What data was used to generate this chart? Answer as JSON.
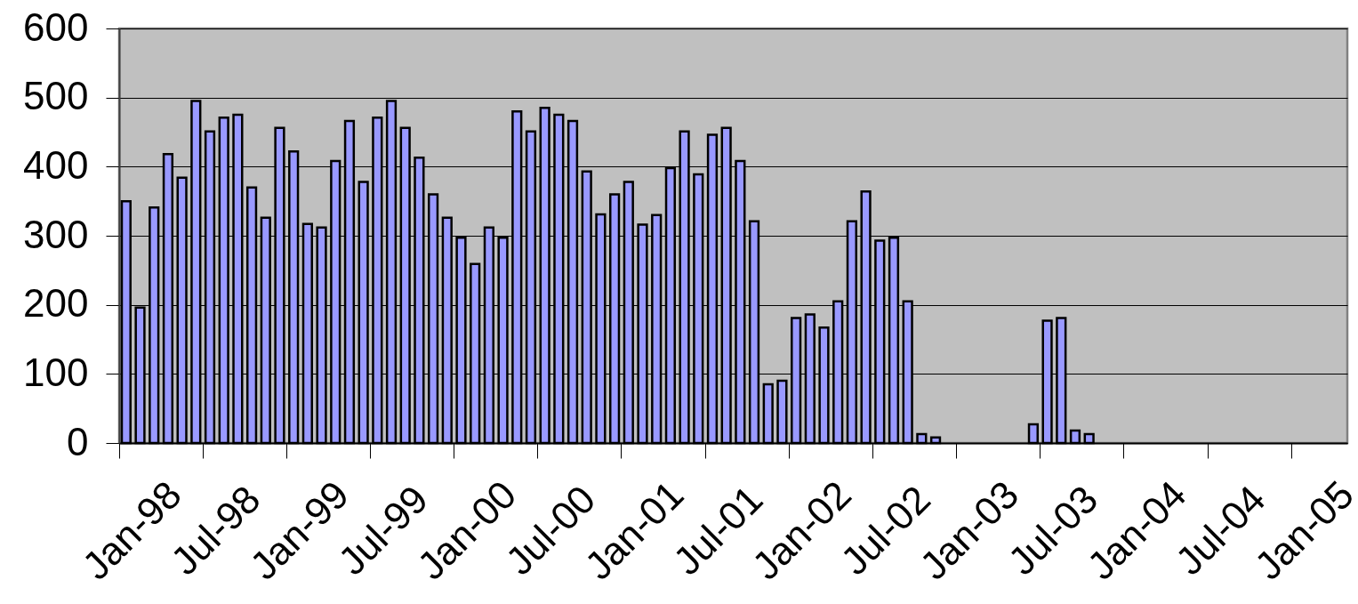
{
  "chart_data": {
    "type": "bar",
    "categories": [
      "Jan-98",
      null,
      null,
      null,
      null,
      null,
      "Jul-98",
      null,
      null,
      null,
      null,
      null,
      "Jan-99",
      null,
      null,
      null,
      null,
      null,
      "Jul-99",
      null,
      null,
      null,
      null,
      null,
      "Jan-00",
      null,
      null,
      null,
      null,
      null,
      "Jul-00",
      null,
      null,
      null,
      null,
      null,
      "Jan-01",
      null,
      null,
      null,
      null,
      null,
      "Jul-01",
      null,
      null,
      null,
      null,
      null,
      "Jan-02",
      null,
      null,
      null,
      null,
      null,
      "Jul-02",
      null,
      null,
      null,
      null,
      null,
      "Jan-03",
      null,
      null,
      null,
      null,
      null,
      "Jul-03",
      null,
      null,
      null,
      null,
      null,
      "Jan-04",
      null,
      null,
      null,
      null,
      null,
      "Jul-04",
      null,
      null,
      null,
      null,
      null,
      "Jan-05",
      null,
      null,
      null
    ],
    "values": [
      350,
      196,
      341,
      418,
      384,
      495,
      451,
      471,
      475,
      370,
      326,
      456,
      422,
      317,
      312,
      408,
      466,
      378,
      471,
      495,
      456,
      413,
      360,
      326,
      297,
      259,
      312,
      297,
      480,
      451,
      485,
      475,
      466,
      393,
      331,
      360,
      378,
      316,
      330,
      398,
      451,
      389,
      446,
      456,
      408,
      321,
      85,
      90,
      181,
      186,
      167,
      205,
      321,
      364,
      293,
      297,
      205,
      13,
      8,
      null,
      null,
      null,
      null,
      null,
      null,
      27,
      177,
      181,
      18,
      13,
      null,
      null,
      null,
      null,
      null,
      null,
      null,
      null,
      null,
      null,
      null,
      null,
      null,
      null,
      null,
      null,
      null,
      null
    ],
    "color": "#9999ff",
    "ylim": [
      0,
      600
    ],
    "yticks": [
      0,
      100,
      200,
      300,
      400,
      500,
      600
    ],
    "grid": "y"
  }
}
